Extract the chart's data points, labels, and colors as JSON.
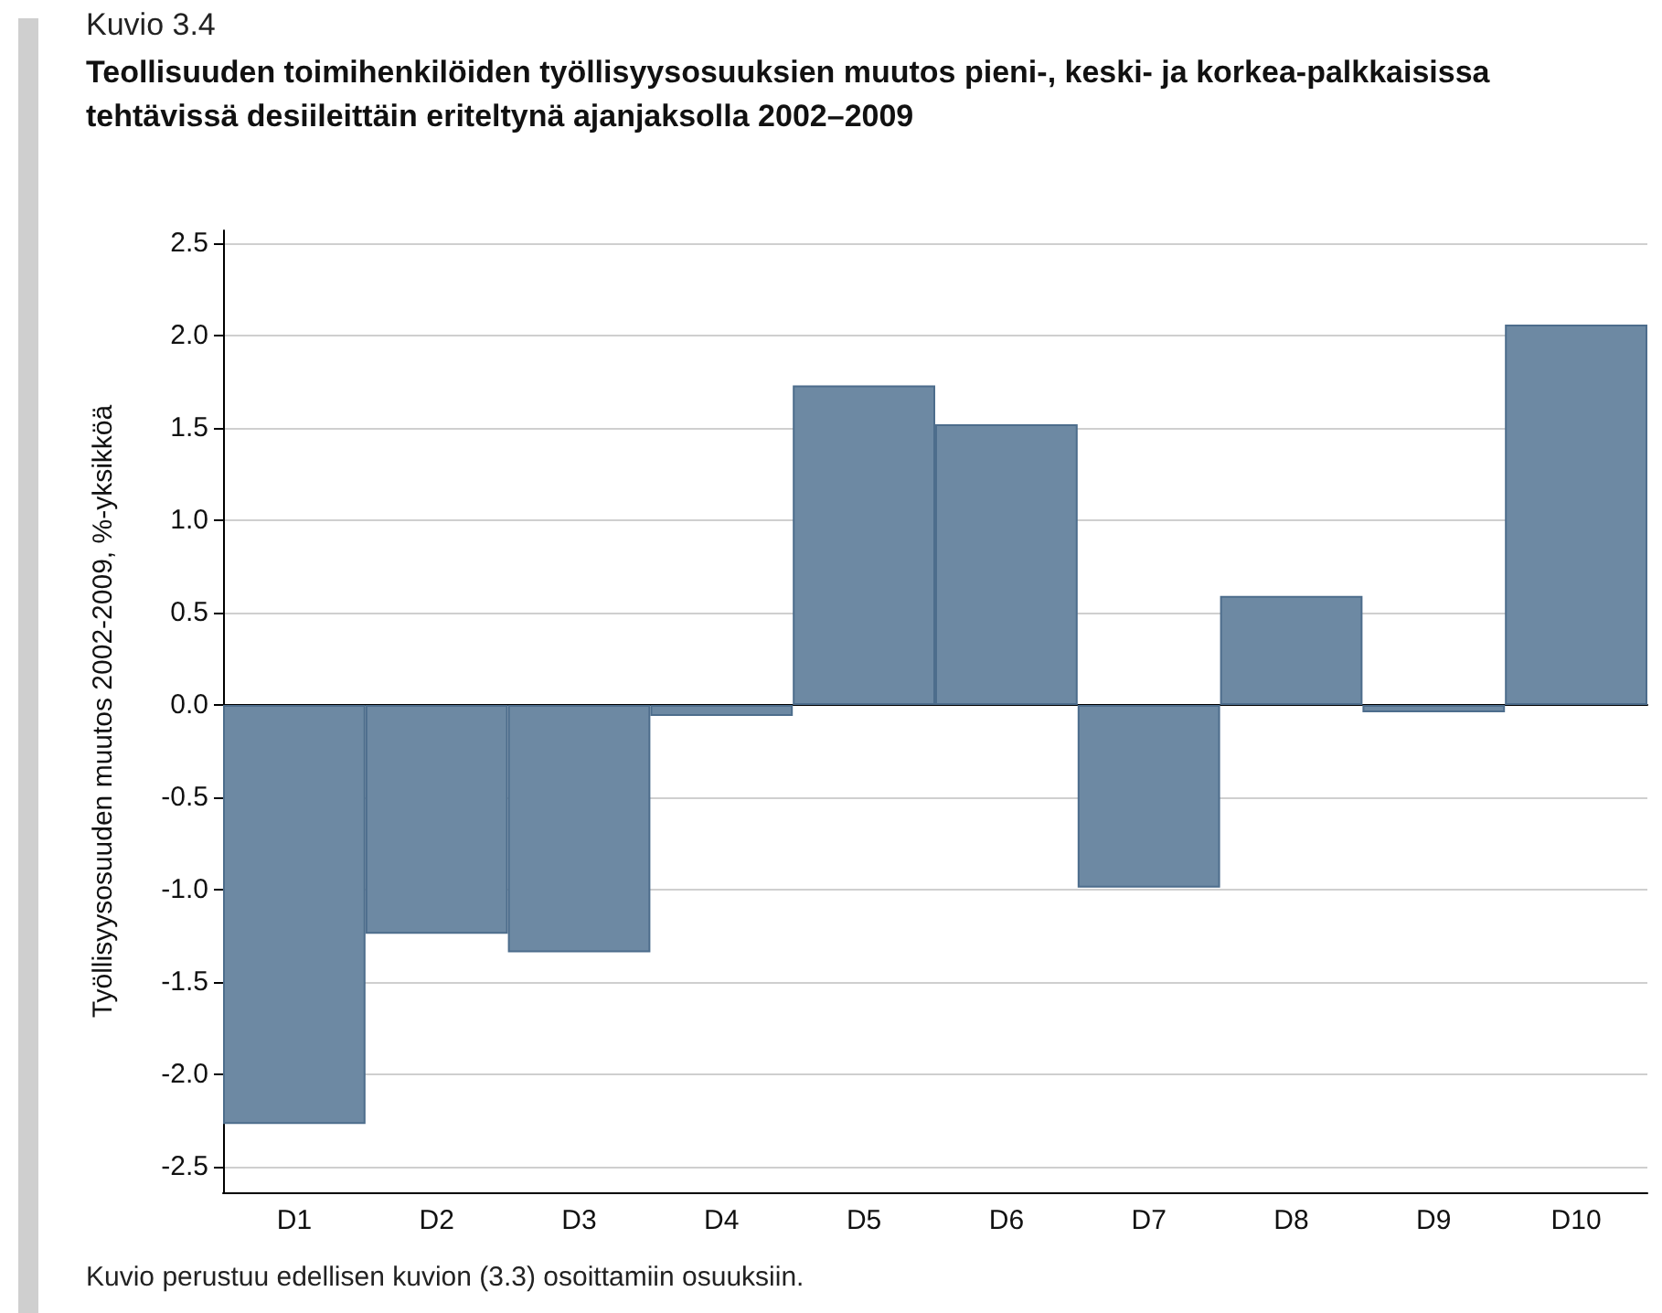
{
  "chart_data": {
    "type": "bar",
    "subtitle": "Kuvio 3.4",
    "title": "Teollisuuden toimihenkilöiden työllisyysosuuksien muutos pieni-, keski- ja korkea-palkkaisissa tehtävissä desiileittäin eriteltynä ajanjaksolla 2002–2009",
    "ylabel": "Työllisyysosuuden muutos 2002-2009, %-yksikköä",
    "annotations": [
      "Kuvio perustuu edellisen kuvion (3.3) osoittamiin osuuksiin."
    ],
    "categories": [
      "D1",
      "D2",
      "D3",
      "D4",
      "D5",
      "D6",
      "D7",
      "D8",
      "D9",
      "D10"
    ],
    "values": [
      -2.27,
      -1.24,
      -1.34,
      -0.06,
      1.73,
      1.52,
      -0.99,
      0.59,
      -0.04,
      2.06
    ],
    "color": "#6d89a3",
    "ylim": [
      -2.64,
      2.57
    ],
    "yticks": [
      -2.5,
      {
        "value": -2,
        "label": "-2.0"
      },
      -1.5,
      {
        "value": -1,
        "label": "-1.0"
      },
      -0.5,
      {
        "value": 0,
        "label": "0.0"
      },
      0.5,
      {
        "value": 1,
        "label": "1.0"
      },
      1.5,
      {
        "value": 2,
        "label": "2.0"
      },
      2.5
    ],
    "grid": "y"
  }
}
